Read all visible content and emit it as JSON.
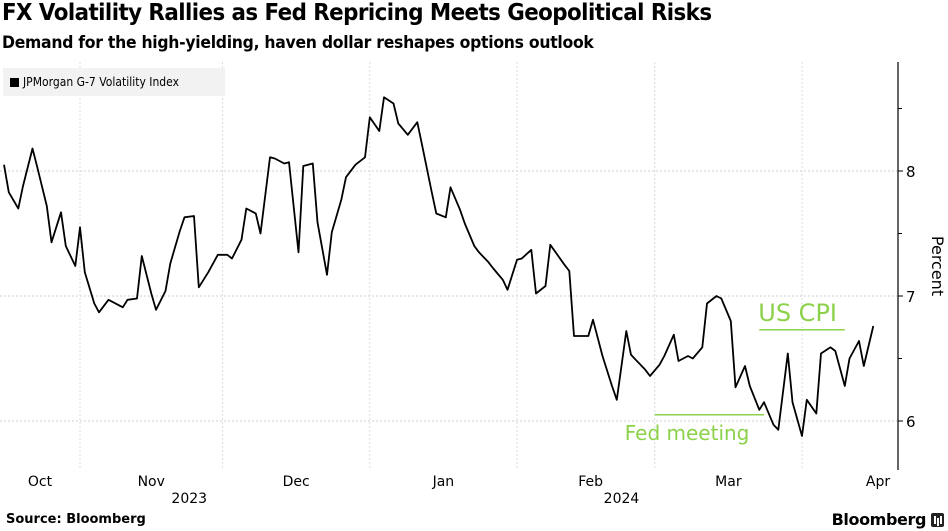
{
  "header": {
    "title": "FX Volatility Rallies as Fed Repricing Meets Geopolitical Risks",
    "subtitle": "Demand for the high-yielding, haven dollar reshapes options outlook"
  },
  "footer": {
    "source": "Source: Bloomberg",
    "brand": "Bloomberg"
  },
  "chart_data": {
    "type": "line",
    "title": "FX Volatility Rallies as Fed Repricing Meets Geopolitical Risks",
    "subtitle": "Demand for the high-yielding, haven dollar reshapes options outlook",
    "xlabel": "",
    "ylabel": "Percent",
    "ylim": [
      5.6,
      8.85
    ],
    "yticks": [
      6,
      7,
      8
    ],
    "ytick_labels": [
      "6",
      "7",
      "8"
    ],
    "y_minor_ticks": [
      5.5,
      6.5,
      7.5,
      8.5
    ],
    "x_unit": "days since 2023-11-01",
    "xlim": [
      -17,
      137
    ],
    "x_month_ticks": [
      {
        "label": "Oct",
        "x": -15.5
      },
      {
        "label": "Nov",
        "x": 15
      },
      {
        "label": "Dec",
        "x": 45.5
      },
      {
        "label": "Jan",
        "x": 76.5
      },
      {
        "label": "Feb",
        "x": 107.5
      },
      {
        "label": "Mar",
        "x": 136.5
      },
      {
        "label": "Apr",
        "x": 167
      }
    ],
    "x_year_labels": [
      {
        "label": "2023",
        "x": 23
      },
      {
        "label": "2024",
        "x": 114
      }
    ],
    "x_gridlines": [
      0,
      30,
      61,
      92,
      121,
      152
    ],
    "grid": true,
    "legend": {
      "position": "top-left",
      "entries": [
        "JPMorgan G-7 Volatility Index"
      ]
    },
    "series": [
      {
        "name": "JPMorgan G-7 Volatility Index",
        "color": "#000000",
        "x": [
          -16,
          -15,
          -13,
          -12,
          -10,
          -9,
          -7,
          -6,
          -4,
          -3,
          -1,
          0,
          1,
          3,
          4,
          6,
          7,
          9,
          10,
          12,
          13,
          15,
          16,
          18,
          19,
          21,
          22,
          24,
          25,
          27,
          29,
          31,
          32,
          34,
          35,
          37,
          38,
          40,
          41,
          43,
          44,
          46,
          47,
          49,
          50,
          52,
          53,
          55,
          56,
          58,
          60,
          61,
          63,
          64,
          66,
          67,
          69,
          71,
          72,
          74,
          75,
          77,
          78,
          80,
          81,
          83,
          84,
          86,
          87,
          89,
          90,
          92,
          93,
          95,
          96,
          98,
          99,
          102,
          103,
          104,
          107,
          108,
          110,
          112,
          113,
          115,
          116,
          119,
          120,
          122,
          123,
          125,
          126,
          128,
          129,
          131,
          132,
          134,
          135,
          137,
          138,
          140,
          141,
          143,
          144,
          146,
          147,
          149,
          150,
          152,
          153,
          155,
          156,
          158,
          159,
          161,
          162,
          164,
          165,
          167
        ],
        "values": [
          8.05,
          7.83,
          7.7,
          7.88,
          8.18,
          8.03,
          7.72,
          7.43,
          7.67,
          7.4,
          7.24,
          7.55,
          7.19,
          6.94,
          6.87,
          6.97,
          6.95,
          6.91,
          6.97,
          6.98,
          7.32,
          7.02,
          6.89,
          7.04,
          7.26,
          7.52,
          7.63,
          7.64,
          7.07,
          7.19,
          7.33,
          7.33,
          7.3,
          7.45,
          7.7,
          7.66,
          7.5,
          8.11,
          8.1,
          8.06,
          8.07,
          7.35,
          8.04,
          8.06,
          7.59,
          7.17,
          7.51,
          7.77,
          7.95,
          8.05,
          8.11,
          8.43,
          8.32,
          8.59,
          8.54,
          8.38,
          8.29,
          8.39,
          8.21,
          7.84,
          7.66,
          7.63,
          7.87,
          7.69,
          7.58,
          7.4,
          7.35,
          7.27,
          7.22,
          7.13,
          7.05,
          7.29,
          7.3,
          7.37,
          7.02,
          7.08,
          7.41,
          7.25,
          7.2,
          6.68,
          6.68,
          6.81,
          6.52,
          6.28,
          6.17,
          6.72,
          6.53,
          6.41,
          6.36,
          6.45,
          6.52,
          6.69,
          6.48,
          6.52,
          6.5,
          6.59,
          6.94,
          7.0,
          6.98,
          6.8,
          6.27,
          6.44,
          6.28,
          6.09,
          6.15,
          5.97,
          5.93,
          6.54,
          6.15,
          5.88,
          6.17,
          6.06,
          6.54,
          6.59,
          6.56,
          6.28,
          6.5,
          6.64,
          6.44,
          6.76
        ]
      }
    ],
    "annotations": [
      {
        "text": "Fed meeting",
        "x_start": 121,
        "x_end": 144,
        "y": 6.05,
        "color": "#8cd14a"
      },
      {
        "text": "US CPI",
        "x_start": 143,
        "x_end": 161,
        "y": 6.73,
        "color": "#8cd14a"
      }
    ]
  }
}
